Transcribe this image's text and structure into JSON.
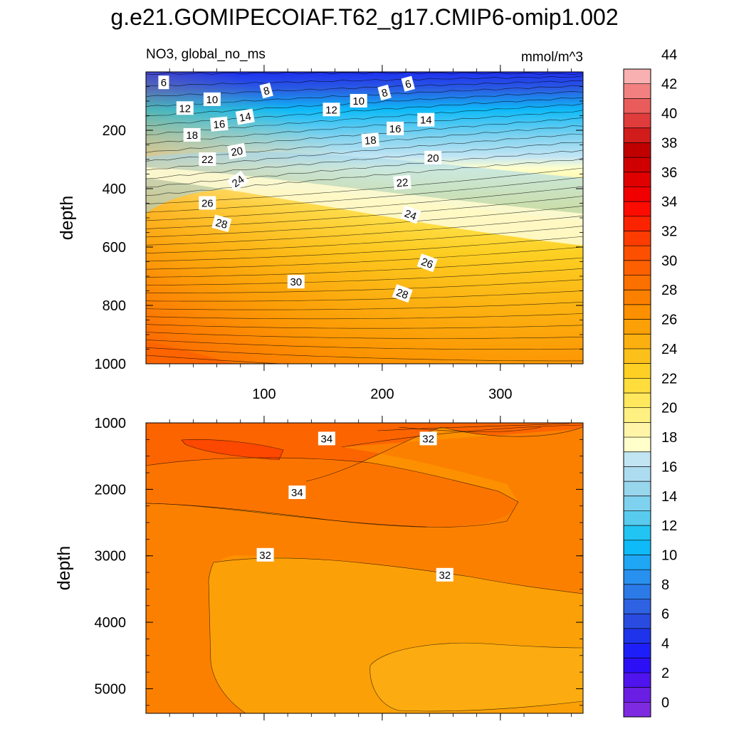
{
  "title": "g.e21.GOMIPECOIAF.T62_g17.CMIP6-omip1.002",
  "chart_data": {
    "type": "contour",
    "variable": "NO3, global_no_ms",
    "units": "mmol/m^3",
    "x_axis": {
      "range": [
        0,
        370
      ],
      "ticks": [
        100,
        200,
        300
      ],
      "tick_labels": [
        "100",
        "200",
        "300"
      ]
    },
    "panels": [
      {
        "name": "upper",
        "ylabel": "depth",
        "ylim": [
          0,
          1000
        ],
        "y_ticks": [
          200,
          400,
          600,
          800,
          1000
        ],
        "y_tick_labels": [
          "200",
          "400",
          "600",
          "800",
          "1000"
        ],
        "contour_labels": [
          {
            "text": "6",
            "x": 15,
            "depth": 37,
            "angle": 0
          },
          {
            "text": "6",
            "x": 222,
            "depth": 42,
            "angle": -15
          },
          {
            "text": "8",
            "x": 102,
            "depth": 65,
            "angle": -15
          },
          {
            "text": "8",
            "x": 202,
            "depth": 72,
            "angle": -15
          },
          {
            "text": "10",
            "x": 56,
            "depth": 95,
            "angle": 0
          },
          {
            "text": "10",
            "x": 180,
            "depth": 100,
            "angle": 0
          },
          {
            "text": "12",
            "x": 33,
            "depth": 125,
            "angle": 0
          },
          {
            "text": "12",
            "x": 157,
            "depth": 130,
            "angle": 0
          },
          {
            "text": "14",
            "x": 84,
            "depth": 155,
            "angle": -10
          },
          {
            "text": "14",
            "x": 237,
            "depth": 165,
            "angle": 0
          },
          {
            "text": "16",
            "x": 62,
            "depth": 180,
            "angle": -5
          },
          {
            "text": "16",
            "x": 211,
            "depth": 195,
            "angle": 0
          },
          {
            "text": "18",
            "x": 39,
            "depth": 217,
            "angle": 0
          },
          {
            "text": "18",
            "x": 190,
            "depth": 235,
            "angle": -5
          },
          {
            "text": "20",
            "x": 77,
            "depth": 273,
            "angle": -10
          },
          {
            "text": "20",
            "x": 243,
            "depth": 295,
            "angle": 0
          },
          {
            "text": "22",
            "x": 52,
            "depth": 300,
            "angle": 0
          },
          {
            "text": "22",
            "x": 217,
            "depth": 380,
            "angle": -5
          },
          {
            "text": "24",
            "x": 78,
            "depth": 375,
            "angle": -35
          },
          {
            "text": "24",
            "x": 224,
            "depth": 490,
            "angle": 20
          },
          {
            "text": "26",
            "x": 52,
            "depth": 450,
            "angle": 0
          },
          {
            "text": "26",
            "x": 238,
            "depth": 655,
            "angle": 20
          },
          {
            "text": "28",
            "x": 64,
            "depth": 520,
            "angle": 15
          },
          {
            "text": "28",
            "x": 217,
            "depth": 760,
            "angle": 20
          },
          {
            "text": "30",
            "x": 127,
            "depth": 720,
            "angle": 0
          }
        ]
      },
      {
        "name": "lower",
        "ylabel": "depth",
        "ylim": [
          1000,
          5370
        ],
        "y_ticks": [
          1000,
          2000,
          3000,
          4000,
          5000
        ],
        "y_tick_labels": [
          "1000",
          "2000",
          "3000",
          "4000",
          "5000"
        ],
        "contour_labels": [
          {
            "text": "34",
            "x": 153,
            "depth": 1240,
            "angle": 0
          },
          {
            "text": "32",
            "x": 239,
            "depth": 1240,
            "angle": 0
          },
          {
            "text": "34",
            "x": 128,
            "depth": 2050,
            "angle": 0
          },
          {
            "text": "32",
            "x": 101,
            "depth": 2990,
            "angle": 0
          },
          {
            "text": "32",
            "x": 253,
            "depth": 3290,
            "angle": 0
          }
        ]
      }
    ],
    "colorbar": {
      "levels": [
        0,
        2,
        4,
        6,
        8,
        10,
        12,
        14,
        16,
        18,
        20,
        22,
        24,
        26,
        28,
        30,
        32,
        34,
        36,
        38,
        40,
        42,
        44
      ],
      "level_labels": [
        "0",
        "2",
        "4",
        "6",
        "8",
        "10",
        "12",
        "14",
        "16",
        "18",
        "20",
        "22",
        "24",
        "26",
        "28",
        "30",
        "32",
        "34",
        "36",
        "38",
        "40",
        "42",
        "44"
      ],
      "colors": [
        "#7d2ae0",
        "#6a1ee3",
        "#4f14ed",
        "#2d0ff6",
        "#1e1ef8",
        "#1f33ea",
        "#2a4be0",
        "#2e62e2",
        "#2c7ae8",
        "#2890ef",
        "#1fa6f4",
        "#0ebaf8",
        "#22c4f4",
        "#58cbef",
        "#7fd2ef",
        "#98d6ee",
        "#addcf0",
        "#c2e5f4",
        "#ffffcc",
        "#fff4a8",
        "#fff082",
        "#ffe85d",
        "#ffdd3c",
        "#fdd023",
        "#fcc01a",
        "#fcb010",
        "#fca008",
        "#fc9000",
        "#fc8000",
        "#fc7000",
        "#fc6000",
        "#fc5000",
        "#fc3c00",
        "#fc2400",
        "#fc0c00",
        "#f00000",
        "#e00000",
        "#d00000",
        "#c00000",
        "#d21c1c",
        "#e03c3c",
        "#ea5c5c",
        "#f28080",
        "#f9b0b0"
      ]
    }
  }
}
